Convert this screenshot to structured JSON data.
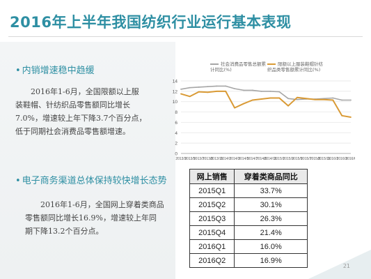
{
  "slide": {
    "title": "2016年上半年我国纺织行业运行基本表现",
    "page_number": "21"
  },
  "section1": {
    "bullet": "内销增速稳中趋缓",
    "lines": [
      "2016年1-6月，全国限额以上服",
      "装鞋帽、针纺织品零售额同比增长",
      "7.0%，增速较上年下降3.7个百分点，",
      "低于同期社会消费品零售额增速。"
    ]
  },
  "section2": {
    "bullet": "电子商务渠道总体保持较快增长态势",
    "lines": [
      "2016年1-6月，全国网上穿着类商品",
      "零售额同比增长16.9%，增速较上年同",
      "期下降13.2个百分点。"
    ]
  },
  "chart_data": {
    "type": "line",
    "x": [
      "2013/3",
      "2013/5",
      "2013/7",
      "2013/9",
      "2013/11",
      "2014/1",
      "2014/3",
      "2014/5",
      "2014/7",
      "2014/9",
      "2014/11",
      "2015/1",
      "2015/3",
      "2015/5",
      "2015/7",
      "2015/9",
      "2015/11",
      "2016/1",
      "2016/3",
      "2016/6"
    ],
    "ylim": [
      0,
      14
    ],
    "yticks": [
      "0",
      "2",
      "4",
      "6",
      "8",
      "10",
      "12",
      "14"
    ],
    "grid": true,
    "legend_position": "top-right",
    "series": [
      {
        "name": "社会消费品零售总额累计同比(%)",
        "color": "#a6a6a6",
        "values": [
          12.4,
          12.7,
          12.8,
          12.9,
          13.0,
          13.0,
          12.5,
          12.2,
          12.2,
          12.0,
          12.0,
          11.9,
          10.6,
          10.4,
          10.5,
          10.5,
          10.6,
          10.7,
          10.3,
          10.3
        ]
      },
      {
        "name": "限额以上服装鞋帽针纺织品类零售额累计同比(%)",
        "color": "#d99a35",
        "values": [
          11.5,
          11.0,
          11.9,
          11.8,
          12.0,
          12.0,
          8.8,
          9.6,
          10.3,
          10.5,
          10.7,
          10.7,
          9.2,
          10.8,
          10.6,
          10.4,
          10.4,
          10.3,
          7.3,
          7.0
        ]
      }
    ]
  },
  "table": {
    "headers": [
      "网上销售",
      "穿着类商品同比"
    ],
    "rows": [
      [
        "2015Q1",
        "33.7%"
      ],
      [
        "2015Q2",
        "30.1%"
      ],
      [
        "2015Q3",
        "26.3%"
      ],
      [
        "2015Q4",
        "21.4%"
      ],
      [
        "2016Q1",
        "16.0%"
      ],
      [
        "2016Q2",
        "16.9%"
      ]
    ]
  }
}
